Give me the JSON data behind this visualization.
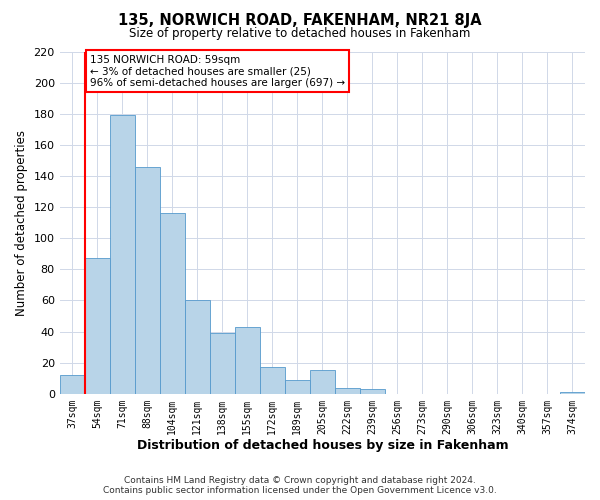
{
  "title": "135, NORWICH ROAD, FAKENHAM, NR21 8JA",
  "subtitle": "Size of property relative to detached houses in Fakenham",
  "xlabel": "Distribution of detached houses by size in Fakenham",
  "ylabel": "Number of detached properties",
  "footer_line1": "Contains HM Land Registry data © Crown copyright and database right 2024.",
  "footer_line2": "Contains public sector information licensed under the Open Government Licence v3.0.",
  "bin_labels": [
    "37sqm",
    "54sqm",
    "71sqm",
    "88sqm",
    "104sqm",
    "121sqm",
    "138sqm",
    "155sqm",
    "172sqm",
    "189sqm",
    "205sqm",
    "222sqm",
    "239sqm",
    "256sqm",
    "273sqm",
    "290sqm",
    "306sqm",
    "323sqm",
    "340sqm",
    "357sqm",
    "374sqm"
  ],
  "bar_values": [
    12,
    87,
    179,
    146,
    116,
    60,
    39,
    43,
    17,
    9,
    15,
    4,
    3,
    0,
    0,
    0,
    0,
    0,
    0,
    0,
    1
  ],
  "bar_color": "#b8d4e8",
  "bar_edge_color": "#5599cc",
  "vline_color": "red",
  "ylim": [
    0,
    220
  ],
  "yticks": [
    0,
    20,
    40,
    60,
    80,
    100,
    120,
    140,
    160,
    180,
    200,
    220
  ],
  "annotation_title": "135 NORWICH ROAD: 59sqm",
  "annotation_line1": "← 3% of detached houses are smaller (25)",
  "annotation_line2": "96% of semi-detached houses are larger (697) →",
  "annotation_box_color": "white",
  "annotation_box_edge_color": "red",
  "bg_color": "#ffffff",
  "grid_color": "#d0d8e8"
}
